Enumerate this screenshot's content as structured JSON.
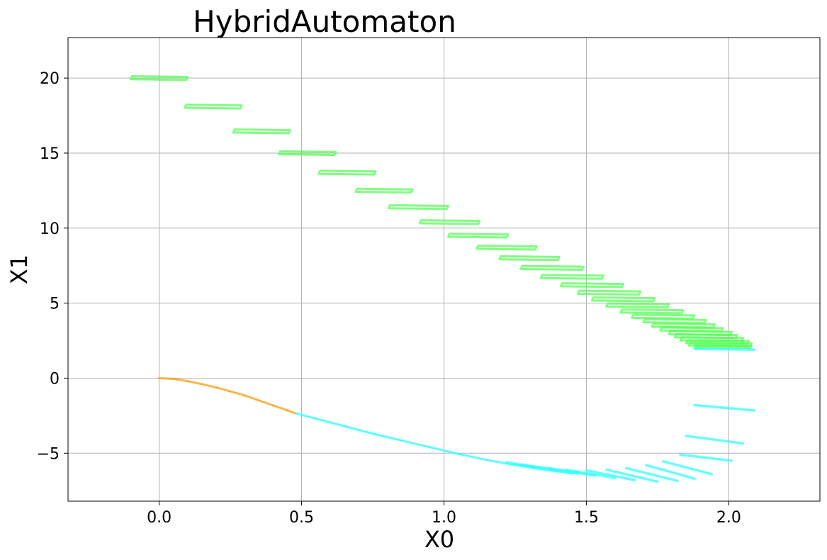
{
  "chart_data": {
    "type": "scatter",
    "title": "HybridAutomaton",
    "xlabel": "X0",
    "ylabel": "X1",
    "xlim": [
      -0.32,
      2.32
    ],
    "ylim": [
      -8.2,
      22.7
    ],
    "xticks": [
      0.0,
      0.5,
      1.0,
      1.5,
      2.0
    ],
    "xtick_labels": [
      "0.0",
      "0.5",
      "1.0",
      "1.5",
      "2.0"
    ],
    "yticks": [
      -5,
      0,
      5,
      10,
      15,
      20
    ],
    "ytick_labels": [
      "−5",
      "0",
      "5",
      "10",
      "15",
      "20"
    ],
    "grid": true,
    "legend": "none",
    "series": [
      {
        "color": "#55ff55",
        "shape": "boxes",
        "boxes": [
          {
            "x": 0.0,
            "y": 20.0,
            "w": 0.2,
            "h": 0.25
          },
          {
            "x": 0.19,
            "y": 18.1,
            "w": 0.2,
            "h": 0.25
          },
          {
            "x": 0.36,
            "y": 16.45,
            "w": 0.2,
            "h": 0.25
          },
          {
            "x": 0.52,
            "y": 15.0,
            "w": 0.2,
            "h": 0.25
          },
          {
            "x": 0.66,
            "y": 13.7,
            "w": 0.2,
            "h": 0.25
          },
          {
            "x": 0.79,
            "y": 12.5,
            "w": 0.2,
            "h": 0.25
          },
          {
            "x": 0.91,
            "y": 11.4,
            "w": 0.21,
            "h": 0.25
          },
          {
            "x": 1.02,
            "y": 10.4,
            "w": 0.21,
            "h": 0.25
          },
          {
            "x": 1.12,
            "y": 9.5,
            "w": 0.21,
            "h": 0.25
          },
          {
            "x": 1.22,
            "y": 8.7,
            "w": 0.21,
            "h": 0.25
          },
          {
            "x": 1.3,
            "y": 8.0,
            "w": 0.21,
            "h": 0.25
          },
          {
            "x": 1.38,
            "y": 7.35,
            "w": 0.22,
            "h": 0.25
          },
          {
            "x": 1.45,
            "y": 6.75,
            "w": 0.22,
            "h": 0.25
          },
          {
            "x": 1.52,
            "y": 6.2,
            "w": 0.22,
            "h": 0.25
          },
          {
            "x": 1.58,
            "y": 5.7,
            "w": 0.22,
            "h": 0.25
          },
          {
            "x": 1.63,
            "y": 5.25,
            "w": 0.22,
            "h": 0.25
          },
          {
            "x": 1.68,
            "y": 4.85,
            "w": 0.22,
            "h": 0.25
          },
          {
            "x": 1.73,
            "y": 4.45,
            "w": 0.22,
            "h": 0.25
          },
          {
            "x": 1.77,
            "y": 4.1,
            "w": 0.22,
            "h": 0.25
          },
          {
            "x": 1.81,
            "y": 3.8,
            "w": 0.22,
            "h": 0.25
          },
          {
            "x": 1.84,
            "y": 3.5,
            "w": 0.22,
            "h": 0.25
          },
          {
            "x": 1.87,
            "y": 3.25,
            "w": 0.22,
            "h": 0.25
          },
          {
            "x": 1.9,
            "y": 3.0,
            "w": 0.22,
            "h": 0.25
          },
          {
            "x": 1.92,
            "y": 2.8,
            "w": 0.22,
            "h": 0.25
          },
          {
            "x": 1.94,
            "y": 2.6,
            "w": 0.22,
            "h": 0.25
          },
          {
            "x": 1.96,
            "y": 2.4,
            "w": 0.22,
            "h": 0.25
          },
          {
            "x": 1.97,
            "y": 2.25,
            "w": 0.22,
            "h": 0.25
          },
          {
            "x": 1.98,
            "y": 2.1,
            "w": 0.2,
            "h": 0.2
          }
        ]
      },
      {
        "color": "#f5a623",
        "shape": "curve",
        "points": [
          {
            "x": 0.0,
            "y": 0.0
          },
          {
            "x": 0.05,
            "y": -0.05
          },
          {
            "x": 0.1,
            "y": -0.2
          },
          {
            "x": 0.15,
            "y": -0.4
          },
          {
            "x": 0.2,
            "y": -0.62
          },
          {
            "x": 0.25,
            "y": -0.88
          },
          {
            "x": 0.3,
            "y": -1.15
          },
          {
            "x": 0.35,
            "y": -1.48
          },
          {
            "x": 0.4,
            "y": -1.82
          },
          {
            "x": 0.45,
            "y": -2.15
          },
          {
            "x": 0.48,
            "y": -2.35
          }
        ]
      },
      {
        "color": "#33ffff",
        "shape": "curve",
        "points": [
          {
            "x": 0.48,
            "y": -2.35
          },
          {
            "x": 0.55,
            "y": -2.7
          },
          {
            "x": 0.65,
            "y": -3.2
          },
          {
            "x": 0.75,
            "y": -3.7
          },
          {
            "x": 0.85,
            "y": -4.15
          },
          {
            "x": 0.95,
            "y": -4.6
          },
          {
            "x": 1.05,
            "y": -5.05
          },
          {
            "x": 1.15,
            "y": -5.45
          },
          {
            "x": 1.25,
            "y": -5.8
          },
          {
            "x": 1.35,
            "y": -6.1
          },
          {
            "x": 1.45,
            "y": -6.35
          }
        ]
      },
      {
        "color": "#33ffff",
        "shape": "segments",
        "segments": [
          {
            "x1": 1.22,
            "y1": -5.6,
            "x2": 1.32,
            "y2": -5.95
          },
          {
            "x1": 1.27,
            "y1": -5.75,
            "x2": 1.4,
            "y2": -6.15
          },
          {
            "x1": 1.32,
            "y1": -5.9,
            "x2": 1.47,
            "y2": -6.35
          },
          {
            "x1": 1.37,
            "y1": -6.0,
            "x2": 1.53,
            "y2": -6.5
          },
          {
            "x1": 1.43,
            "y1": -6.1,
            "x2": 1.6,
            "y2": -6.65
          },
          {
            "x1": 1.5,
            "y1": -6.15,
            "x2": 1.67,
            "y2": -6.8
          },
          {
            "x1": 1.57,
            "y1": -6.1,
            "x2": 1.75,
            "y2": -6.9
          },
          {
            "x1": 1.64,
            "y1": -6.0,
            "x2": 1.82,
            "y2": -6.85
          },
          {
            "x1": 1.71,
            "y1": -5.8,
            "x2": 1.88,
            "y2": -6.7
          },
          {
            "x1": 1.77,
            "y1": -5.55,
            "x2": 1.94,
            "y2": -6.4
          },
          {
            "x1": 1.83,
            "y1": -5.1,
            "x2": 2.01,
            "y2": -5.5
          },
          {
            "x1": 1.85,
            "y1": -3.85,
            "x2": 2.05,
            "y2": -4.35
          },
          {
            "x1": 1.88,
            "y1": -1.8,
            "x2": 2.09,
            "y2": -2.15
          },
          {
            "x1": 1.88,
            "y1": 1.95,
            "x2": 2.09,
            "y2": 1.9
          }
        ]
      }
    ]
  }
}
